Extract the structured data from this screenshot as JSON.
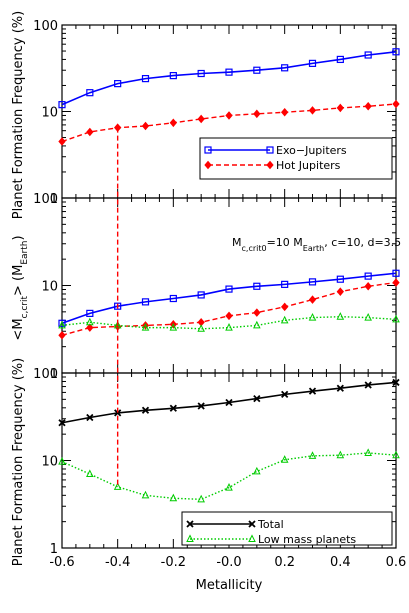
{
  "chart_data": {
    "type": "line",
    "x_label": "Metallicity",
    "x_ticks": [
      "-0.6",
      "-0.4",
      "-0.2",
      "-0.0",
      "0.2",
      "0.4",
      "0.6"
    ],
    "x": [
      -0.6,
      -0.5,
      -0.4,
      -0.3,
      -0.2,
      -0.1,
      0.0,
      0.1,
      0.2,
      0.3,
      0.4,
      0.5,
      0.6
    ],
    "x_range": [
      -0.6,
      0.6
    ],
    "marker_line_x": -0.4,
    "panels": [
      {
        "ylabel": "Planet Formation Frequency  (%)",
        "y_scale": "log",
        "ylim": [
          1,
          100
        ],
        "y_ticks": [
          "1",
          "10",
          "100"
        ],
        "legend": {
          "position": "bottom-right"
        },
        "series": [
          {
            "name": "Exo−Jupiters",
            "color": "#0000ff",
            "dash": "solid",
            "marker": "square",
            "values": [
              12,
              16.5,
              21,
              24,
              26,
              27.5,
              28.5,
              30,
              32,
              36,
              40,
              45,
              49
            ]
          },
          {
            "name": "Hot Jupiters",
            "color": "#ff0000",
            "dash": "dashed",
            "marker": "diamond",
            "values": [
              4.5,
              5.8,
              6.5,
              6.8,
              7.4,
              8.2,
              9,
              9.4,
              9.8,
              10.3,
              11,
              11.5,
              12.2
            ]
          }
        ]
      },
      {
        "ylabel_main": "<M",
        "ylabel_sub1": "c,crit",
        "ylabel_mid": ">  (M",
        "ylabel_sub2": "Earth",
        "ylabel_end": ")",
        "y_scale": "log",
        "ylim": [
          1,
          100
        ],
        "y_ticks": [
          "1",
          "10",
          "100"
        ],
        "annotation": {
          "a1": "M",
          "a1_sub": "c,crit0",
          "a2": "=10 M",
          "a2_sub": "Earth",
          "a3": ", c=10, d=3.5"
        },
        "series": [
          {
            "color": "#0000ff",
            "dash": "solid",
            "marker": "square",
            "values": [
              3.7,
              4.8,
              5.8,
              6.5,
              7.1,
              7.8,
              9.1,
              9.8,
              10.3,
              11,
              11.8,
              12.8,
              13.8
            ]
          },
          {
            "color": "#ff0000",
            "dash": "dashed",
            "marker": "diamond",
            "values": [
              2.7,
              3.3,
              3.4,
              3.5,
              3.6,
              3.8,
              4.5,
              4.9,
              5.7,
              6.9,
              8.5,
              9.8,
              10.8
            ]
          },
          {
            "color": "#00cc00",
            "dash": "dotted",
            "marker": "triangle",
            "values": [
              3.5,
              3.8,
              3.5,
              3.3,
              3.3,
              3.2,
              3.3,
              3.5,
              4,
              4.3,
              4.4,
              4.3,
              4.1
            ]
          }
        ]
      },
      {
        "ylabel": "Planet Formation Frequency  (%)",
        "y_scale": "log",
        "ylim": [
          1,
          100
        ],
        "y_ticks": [
          "1",
          "10",
          "100"
        ],
        "legend": {
          "position": "bottom-right"
        },
        "series": [
          {
            "name": "Total",
            "color": "#000000",
            "dash": "solid",
            "marker": "x",
            "values": [
              27,
              31,
              35,
              37.5,
              39.5,
              42,
              46,
              51,
              57,
              62,
              67,
              73,
              78
            ]
          },
          {
            "name": "Low mass planets",
            "color": "#00cc00",
            "dash": "dotted",
            "marker": "triangle",
            "values": [
              9.7,
              7,
              5,
              4,
              3.7,
              3.6,
              4.9,
              7.5,
              10.2,
              11.3,
              11.5,
              12.2,
              11.5
            ]
          }
        ]
      }
    ]
  }
}
